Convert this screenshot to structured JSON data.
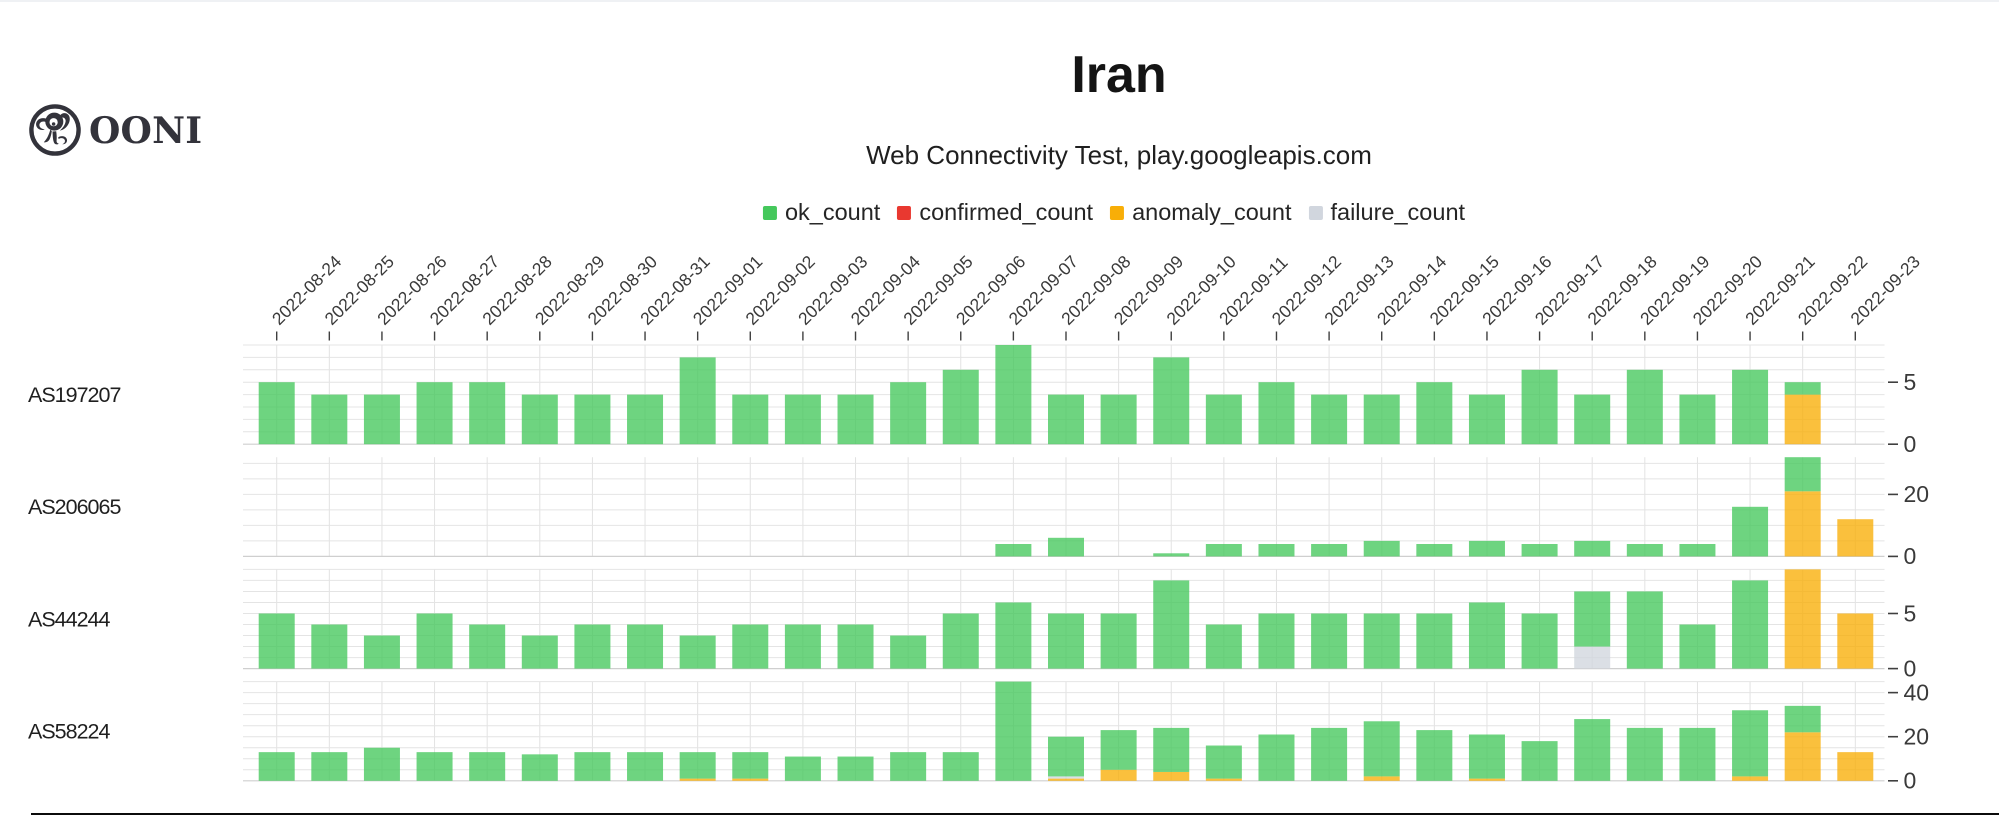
{
  "logo": {
    "wordmark": "OONI",
    "icon": "ooni-octopus"
  },
  "header": {
    "title": "Iran",
    "subtitle": "Web Connectivity Test, play.googleapis.com"
  },
  "legend": [
    {
      "key": "ok_count",
      "label": "ok_count",
      "color": "#45C85C"
    },
    {
      "key": "confirmed_count",
      "label": "confirmed_count",
      "color": "#E93830"
    },
    {
      "key": "anomaly_count",
      "label": "anomaly_count",
      "color": "#F8AE07"
    },
    {
      "key": "failure_count",
      "label": "failure_count",
      "color": "#D1D6DE"
    }
  ],
  "chart_data": {
    "type": "bar",
    "stacked": true,
    "stack_order": [
      "anomaly_count",
      "confirmed_count",
      "failure_count",
      "ok_count"
    ],
    "bar_opacity": 0.78,
    "colors": {
      "ok_count": "#45C85C",
      "confirmed_count": "#E93830",
      "anomaly_count": "#F8AE07",
      "failure_count": "#D1D6DE"
    },
    "x": [
      "2022-08-24",
      "2022-08-25",
      "2022-08-26",
      "2022-08-27",
      "2022-08-28",
      "2022-08-29",
      "2022-08-30",
      "2022-08-31",
      "2022-09-01",
      "2022-09-02",
      "2022-09-03",
      "2022-09-04",
      "2022-09-05",
      "2022-09-06",
      "2022-09-07",
      "2022-09-08",
      "2022-09-09",
      "2022-09-10",
      "2022-09-11",
      "2022-09-12",
      "2022-09-13",
      "2022-09-14",
      "2022-09-15",
      "2022-09-16",
      "2022-09-17",
      "2022-09-18",
      "2022-09-19",
      "2022-09-20",
      "2022-09-21",
      "2022-09-22",
      "2022-09-23"
    ],
    "rows": [
      {
        "label": "AS197207",
        "ymax": 8,
        "grid_step": 1,
        "yticks": [
          0,
          5
        ],
        "series": {
          "ok_count": [
            5,
            4,
            4,
            5,
            5,
            4,
            4,
            4,
            7,
            4,
            4,
            4,
            5,
            6,
            8,
            4,
            4,
            7,
            4,
            5,
            4,
            4,
            5,
            4,
            6,
            4,
            6,
            4,
            6,
            1,
            0
          ],
          "confirmed_count": [
            0,
            0,
            0,
            0,
            0,
            0,
            0,
            0,
            0,
            0,
            0,
            0,
            0,
            0,
            0,
            0,
            0,
            0,
            0,
            0,
            0,
            0,
            0,
            0,
            0,
            0,
            0,
            0,
            0,
            0,
            0
          ],
          "anomaly_count": [
            0,
            0,
            0,
            0,
            0,
            0,
            0,
            0,
            0,
            0,
            0,
            0,
            0,
            0,
            0,
            0,
            0,
            0,
            0,
            0,
            0,
            0,
            0,
            0,
            0,
            0,
            0,
            0,
            0,
            4,
            0
          ],
          "failure_count": [
            0,
            0,
            0,
            0,
            0,
            0,
            0,
            0,
            0,
            0,
            0,
            0,
            0,
            0,
            0,
            0,
            0,
            0,
            0,
            0,
            0,
            0,
            0,
            0,
            0,
            0,
            0,
            0,
            0,
            0,
            0
          ]
        }
      },
      {
        "label": "AS206065",
        "ymax": 32,
        "grid_step": 5,
        "yticks": [
          0,
          20
        ],
        "series": {
          "ok_count": [
            0,
            0,
            0,
            0,
            0,
            0,
            0,
            0,
            0,
            0,
            0,
            0,
            0,
            0,
            4,
            6,
            0,
            1,
            4,
            4,
            4,
            5,
            4,
            5,
            4,
            5,
            4,
            4,
            16,
            11,
            0
          ],
          "confirmed_count": [
            0,
            0,
            0,
            0,
            0,
            0,
            0,
            0,
            0,
            0,
            0,
            0,
            0,
            0,
            0,
            0,
            0,
            0,
            0,
            0,
            0,
            0,
            0,
            0,
            0,
            0,
            0,
            0,
            0,
            0,
            0
          ],
          "anomaly_count": [
            0,
            0,
            0,
            0,
            0,
            0,
            0,
            0,
            0,
            0,
            0,
            0,
            0,
            0,
            0,
            0,
            0,
            0,
            0,
            0,
            0,
            0,
            0,
            0,
            0,
            0,
            0,
            0,
            0,
            21,
            12
          ],
          "failure_count": [
            0,
            0,
            0,
            0,
            0,
            0,
            0,
            0,
            0,
            0,
            0,
            0,
            0,
            0,
            0,
            0,
            0,
            0,
            0,
            0,
            0,
            0,
            0,
            0,
            0,
            0,
            0,
            0,
            0,
            0,
            0
          ]
        }
      },
      {
        "label": "AS44244",
        "ymax": 9,
        "grid_step": 1,
        "yticks": [
          0,
          5
        ],
        "series": {
          "ok_count": [
            5,
            4,
            3,
            5,
            4,
            3,
            4,
            4,
            3,
            4,
            4,
            4,
            3,
            5,
            6,
            5,
            5,
            8,
            4,
            5,
            5,
            5,
            5,
            6,
            5,
            5,
            7,
            4,
            8,
            0,
            0
          ],
          "confirmed_count": [
            0,
            0,
            0,
            0,
            0,
            0,
            0,
            0,
            0,
            0,
            0,
            0,
            0,
            0,
            0,
            0,
            0,
            0,
            0,
            0,
            0,
            0,
            0,
            0,
            0,
            0,
            0,
            0,
            0,
            0,
            0
          ],
          "anomaly_count": [
            0,
            0,
            0,
            0,
            0,
            0,
            0,
            0,
            0,
            0,
            0,
            0,
            0,
            0,
            0,
            0,
            0,
            0,
            0,
            0,
            0,
            0,
            0,
            0,
            0,
            0,
            0,
            0,
            0,
            9,
            5
          ],
          "failure_count": [
            0,
            0,
            0,
            0,
            0,
            0,
            0,
            0,
            0,
            0,
            0,
            0,
            0,
            0,
            0,
            0,
            0,
            0,
            0,
            0,
            0,
            0,
            0,
            0,
            0,
            2,
            0,
            0,
            0,
            0,
            0
          ]
        }
      },
      {
        "label": "AS58224",
        "ymax": 45,
        "grid_step": 5,
        "yticks": [
          0,
          20,
          40
        ],
        "series": {
          "ok_count": [
            13,
            13,
            15,
            13,
            13,
            12,
            13,
            13,
            12,
            12,
            11,
            11,
            13,
            13,
            45,
            18,
            18,
            20,
            15,
            21,
            24,
            25,
            23,
            20,
            18,
            28,
            24,
            24,
            30,
            12,
            0
          ],
          "confirmed_count": [
            0,
            0,
            0,
            0,
            0,
            0,
            0,
            0,
            0,
            0,
            0,
            0,
            0,
            0,
            0,
            0,
            0,
            0,
            0,
            0,
            0,
            0,
            0,
            0,
            0,
            0,
            0,
            0,
            0,
            0,
            0
          ],
          "anomaly_count": [
            0,
            0,
            0,
            0,
            0,
            0,
            0,
            0,
            1,
            1,
            0,
            0,
            0,
            0,
            0,
            1,
            5,
            4,
            1,
            0,
            0,
            2,
            0,
            1,
            0,
            0,
            0,
            0,
            2,
            22,
            13
          ],
          "failure_count": [
            0,
            0,
            0,
            0,
            0,
            0,
            0,
            0,
            0,
            0,
            0,
            0,
            0,
            0,
            0,
            1,
            0,
            0,
            0,
            0,
            0,
            0,
            0,
            0,
            0,
            0,
            0,
            0,
            0,
            0,
            0
          ]
        }
      }
    ]
  }
}
